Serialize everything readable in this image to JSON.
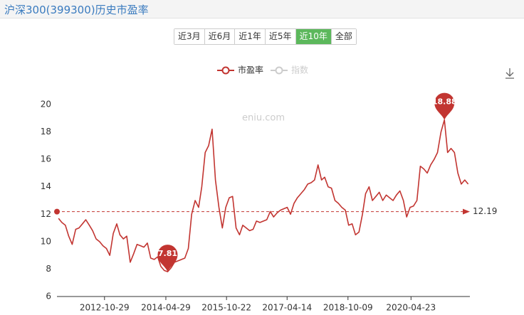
{
  "chart_data": {
    "type": "line",
    "title": "沪深300(399300)历史市盈率",
    "watermark": "eniu.com",
    "range_buttons": [
      "近3月",
      "近6月",
      "近1年",
      "近5年",
      "近10年",
      "全部"
    ],
    "selected_button": 4,
    "x": [
      "2011-09-15",
      "2011-10-15",
      "2011-11-15",
      "2011-12-15",
      "2012-01-15",
      "2012-02-15",
      "2012-03-15",
      "2012-04-15",
      "2012-05-15",
      "2012-06-15",
      "2012-07-15",
      "2012-08-15",
      "2012-09-15",
      "2012-10-15",
      "2012-11-15",
      "2012-12-15",
      "2013-01-15",
      "2013-02-15",
      "2013-03-15",
      "2013-04-15",
      "2013-05-15",
      "2013-06-15",
      "2013-07-15",
      "2013-08-15",
      "2013-09-15",
      "2013-10-15",
      "2013-11-15",
      "2013-12-15",
      "2014-01-15",
      "2014-02-15",
      "2014-03-15",
      "2014-04-15",
      "2014-05-15",
      "2014-06-15",
      "2014-07-15",
      "2014-08-15",
      "2014-09-15",
      "2014-10-15",
      "2014-11-15",
      "2014-12-15",
      "2015-01-15",
      "2015-02-15",
      "2015-03-15",
      "2015-04-15",
      "2015-05-15",
      "2015-06-15",
      "2015-07-15",
      "2015-08-15",
      "2015-09-15",
      "2015-10-15",
      "2015-11-15",
      "2015-12-15",
      "2016-01-15",
      "2016-02-15",
      "2016-03-15",
      "2016-04-15",
      "2016-05-15",
      "2016-06-15",
      "2016-07-15",
      "2016-08-15",
      "2016-09-15",
      "2016-10-15",
      "2016-11-15",
      "2016-12-15",
      "2017-01-15",
      "2017-02-15",
      "2017-03-15",
      "2017-04-15",
      "2017-05-15",
      "2017-06-15",
      "2017-07-15",
      "2017-08-15",
      "2017-09-15",
      "2017-10-15",
      "2017-11-15",
      "2017-12-15",
      "2018-01-15",
      "2018-02-15",
      "2018-03-15",
      "2018-04-15",
      "2018-05-15",
      "2018-06-15",
      "2018-07-15",
      "2018-08-15",
      "2018-09-15",
      "2018-10-15",
      "2018-11-15",
      "2018-12-15",
      "2019-01-15",
      "2019-02-15",
      "2019-03-15",
      "2019-04-15",
      "2019-05-15",
      "2019-06-15",
      "2019-07-15",
      "2019-08-15",
      "2019-09-15",
      "2019-10-15",
      "2019-11-15",
      "2019-12-15",
      "2020-01-15",
      "2020-02-15",
      "2020-03-15",
      "2020-04-15",
      "2020-05-15",
      "2020-06-15",
      "2020-07-15",
      "2020-08-15",
      "2020-09-15",
      "2020-10-15",
      "2020-11-15",
      "2020-12-15",
      "2021-01-15",
      "2021-02-15",
      "2021-03-15",
      "2021-04-15",
      "2021-05-15",
      "2021-06-15",
      "2021-07-15",
      "2021-08-15",
      "2021-09-15"
    ],
    "series": [
      {
        "name": "市盈率",
        "color": "#c23531",
        "values": [
          11.7,
          11.4,
          11.2,
          10.4,
          9.8,
          10.9,
          11.0,
          11.3,
          11.6,
          11.2,
          10.8,
          10.2,
          10.0,
          9.7,
          9.5,
          9.0,
          10.6,
          11.3,
          10.5,
          10.2,
          10.4,
          8.5,
          9.1,
          9.8,
          9.7,
          9.6,
          9.9,
          8.8,
          8.7,
          8.9,
          8.2,
          7.9,
          7.81,
          8.1,
          8.5,
          8.6,
          8.7,
          8.8,
          9.5,
          12.0,
          13.0,
          12.5,
          14.0,
          16.5,
          17.0,
          18.2,
          14.5,
          12.5,
          11.0,
          12.5,
          13.2,
          13.3,
          11.0,
          10.5,
          11.2,
          11.0,
          10.8,
          10.9,
          11.5,
          11.4,
          11.5,
          11.6,
          12.2,
          11.8,
          12.1,
          12.3,
          12.4,
          12.5,
          12.0,
          12.8,
          13.2,
          13.5,
          13.8,
          14.2,
          14.3,
          14.5,
          15.6,
          14.5,
          14.7,
          14.0,
          13.9,
          13.0,
          12.8,
          12.5,
          12.3,
          11.2,
          11.3,
          10.5,
          10.7,
          12.0,
          13.5,
          14.0,
          13.0,
          13.3,
          13.6,
          13.0,
          13.4,
          13.2,
          13.0,
          13.4,
          13.7,
          13.0,
          11.8,
          12.5,
          12.6,
          13.0,
          15.5,
          15.3,
          15.0,
          15.6,
          16.0,
          16.5,
          18.0,
          18.88,
          16.5,
          16.8,
          16.5,
          15.0,
          14.2,
          14.5,
          14.2
        ]
      }
    ],
    "inactive_series": {
      "name": "指数",
      "color": "#cccccc"
    },
    "max": {
      "x": "2021-02-15",
      "value": 18.88
    },
    "min": {
      "x": "2014-05-15",
      "value": 7.81
    },
    "average": 12.19,
    "xlim": [
      "2011-09-01",
      "2021-09-30"
    ],
    "xticks": [
      "2012-10-29",
      "2014-04-29",
      "2015-10-22",
      "2017-04-14",
      "2018-10-09",
      "2020-04-23"
    ],
    "ylim": [
      6,
      20
    ],
    "yticks": [
      6,
      8,
      10,
      12,
      14,
      16,
      18,
      20
    ]
  }
}
